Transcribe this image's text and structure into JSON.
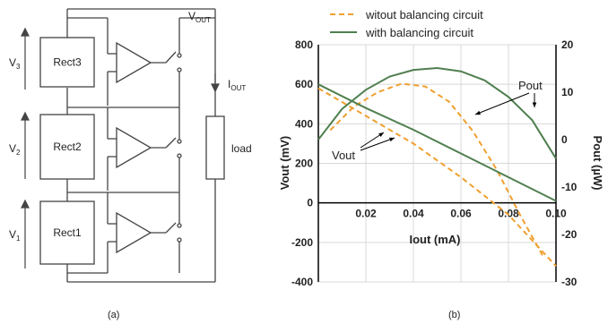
{
  "circuit": {
    "caption": "(a)",
    "vout_label": "V",
    "vout_sub": "OUT",
    "iout_label": "I",
    "iout_sub": "OUT",
    "load_label": "load",
    "blocks": [
      {
        "name": "Rect3",
        "v": "V",
        "sub": "3"
      },
      {
        "name": "Rect2",
        "v": "V",
        "sub": "2"
      },
      {
        "name": "Rect1",
        "v": "V",
        "sub": "1"
      }
    ]
  },
  "chart_data": {
    "type": "line",
    "caption": "(b)",
    "xlabel": "Iout (mA)",
    "ylabel": "Vout (mV)",
    "y2label": "Pout (µW)",
    "xlim": [
      0,
      0.1
    ],
    "ylim": [
      -400,
      800
    ],
    "y2lim": [
      -30,
      20
    ],
    "x_ticks": [
      "0.02",
      "0.04",
      "0.06",
      "0.08",
      "0.10"
    ],
    "y_ticks": [
      "-400",
      "-200",
      "0",
      "200",
      "400",
      "600",
      "800"
    ],
    "y2_ticks": [
      "-30",
      "-20",
      "-10",
      "0",
      "10",
      "20"
    ],
    "grid": true,
    "legend": [
      {
        "label": "witout balancing circuit",
        "color": "#f0a030",
        "dash": true
      },
      {
        "label": "with balancing circuit",
        "color": "#4f7f4f",
        "dash": false
      }
    ],
    "annotations": [
      {
        "text": "Vout"
      },
      {
        "text": "Pout"
      }
    ],
    "series": [
      {
        "name": "witout balancing circuit",
        "quantity": "Vout",
        "axis": "left",
        "color": "#f0a030",
        "dash": true,
        "x": [
          0,
          0.02,
          0.04,
          0.06,
          0.08,
          0.1
        ],
        "y": [
          580,
          440,
          300,
          130,
          -60,
          -320
        ]
      },
      {
        "name": "witout balancing circuit",
        "quantity": "Pout",
        "axis": "right",
        "color": "#f0a030",
        "dash": true,
        "x": [
          0.005,
          0.015,
          0.025,
          0.035,
          0.045,
          0.055,
          0.065,
          0.075,
          0.085,
          0.095
        ],
        "y": [
          2,
          7,
          10,
          11.8,
          11.2,
          8,
          1.8,
          -6.3,
          -16,
          -25
        ]
      },
      {
        "name": "with balancing circuit",
        "quantity": "Vout",
        "axis": "left",
        "color": "#4f7f4f",
        "dash": false,
        "x": [
          0,
          0.02,
          0.04,
          0.06,
          0.08,
          0.1
        ],
        "y": [
          600,
          480,
          370,
          250,
          130,
          10
        ]
      },
      {
        "name": "with balancing circuit",
        "quantity": "Pout",
        "axis": "right",
        "color": "#4f7f4f",
        "dash": false,
        "x": [
          0,
          0.01,
          0.02,
          0.03,
          0.04,
          0.05,
          0.06,
          0.07,
          0.08,
          0.09,
          0.1
        ],
        "y": [
          0,
          6.5,
          10.5,
          13.3,
          14.7,
          15.1,
          14.4,
          12.5,
          9,
          4.1,
          -4
        ]
      }
    ]
  }
}
